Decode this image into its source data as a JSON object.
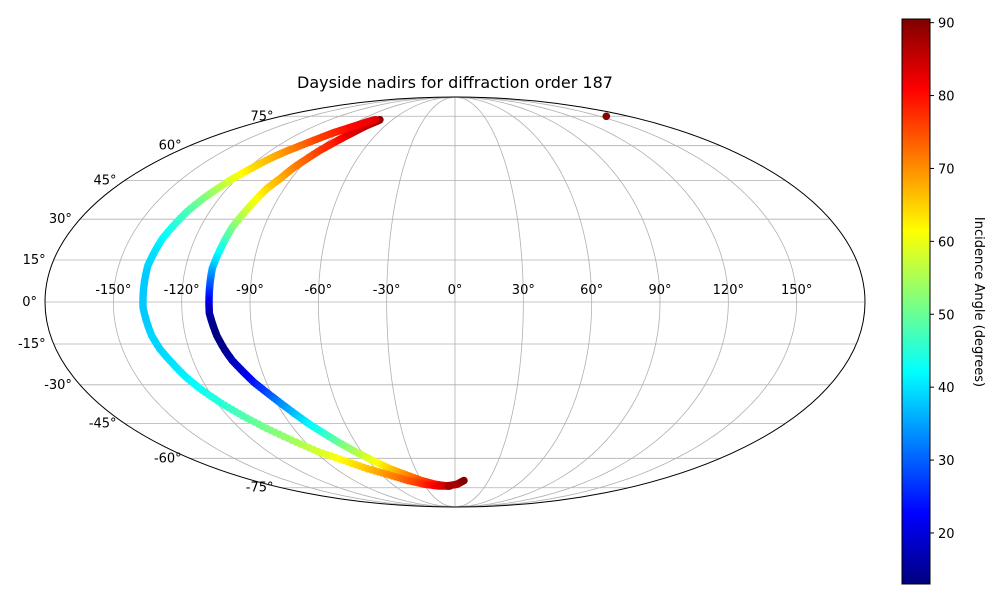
{
  "chart_data": {
    "type": "scatter",
    "projection": "mollweide",
    "title": "Dayside nadirs for diffraction order 187",
    "grid": true,
    "lon_ticks": [
      -150,
      -120,
      -90,
      -60,
      -30,
      0,
      30,
      60,
      90,
      120,
      150
    ],
    "lon_tick_labels": [
      "-150°",
      "-120°",
      "-90°",
      "-60°",
      "-30°",
      "0°",
      "30°",
      "60°",
      "90°",
      "120°",
      "150°"
    ],
    "lat_ticks": [
      75,
      60,
      45,
      30,
      15,
      0,
      -15,
      -30,
      -45,
      -60,
      -75
    ],
    "lat_tick_labels": [
      "75°",
      "60°",
      "45°",
      "30°",
      "15°",
      "0°",
      "-15°",
      "-30°",
      "-45°",
      "-60°",
      "-75°"
    ],
    "colorbar": {
      "label": "Incidence Angle (degrees)",
      "colormap": "jet",
      "range": [
        13,
        90.5
      ],
      "ticks": [
        20,
        30,
        40,
        50,
        60,
        70,
        80,
        90
      ],
      "tick_labels": [
        "20",
        "30",
        "40",
        "50",
        "60",
        "70",
        "80",
        "90"
      ]
    },
    "series": [
      {
        "points": [
          [
            -72,
            73,
            90
          ],
          [
            -73,
            72,
            88
          ],
          [
            -76,
            70,
            86
          ],
          [
            -79,
            67,
            84
          ],
          [
            -82,
            64,
            82
          ],
          [
            -85,
            61,
            79
          ],
          [
            -88,
            58,
            77
          ],
          [
            -91,
            54,
            74
          ],
          [
            -94,
            50,
            71
          ],
          [
            -96,
            46,
            68
          ],
          [
            -99,
            42,
            65
          ],
          [
            -101,
            37,
            61
          ],
          [
            -103,
            32,
            57
          ],
          [
            -105,
            27,
            52
          ],
          [
            -106,
            22,
            47
          ],
          [
            -107,
            17,
            42
          ],
          [
            -108,
            12,
            37
          ],
          [
            -108,
            8,
            32
          ],
          [
            -108,
            4,
            27
          ],
          [
            -108,
            0,
            22
          ],
          [
            -108,
            -4,
            17
          ],
          [
            -107,
            -8,
            14
          ],
          [
            -106,
            -12,
            13
          ],
          [
            -104,
            -17,
            14
          ],
          [
            -102,
            -21,
            17
          ],
          [
            -99,
            -25,
            20
          ],
          [
            -96,
            -29,
            24
          ],
          [
            -92,
            -33,
            28
          ],
          [
            -88,
            -37,
            33
          ],
          [
            -84,
            -41,
            37
          ],
          [
            -80,
            -45,
            41
          ],
          [
            -75,
            -49,
            45
          ],
          [
            -70,
            -53,
            50
          ],
          [
            -64,
            -57,
            55
          ],
          [
            -57,
            -61,
            60
          ],
          [
            -49,
            -65,
            65
          ],
          [
            -40,
            -68,
            70
          ],
          [
            -30,
            -71,
            75
          ],
          [
            -19,
            -73,
            79
          ],
          [
            -8,
            -74,
            83
          ],
          [
            2,
            -73,
            87
          ],
          [
            8,
            -71,
            90
          ]
        ]
      },
      {
        "points": [
          [
            -76,
            73,
            84
          ],
          [
            -80,
            72,
            82
          ],
          [
            -85,
            70,
            81
          ],
          [
            -90,
            68,
            80
          ],
          [
            -95,
            66,
            78
          ],
          [
            -100,
            63,
            76
          ],
          [
            -105,
            60,
            73
          ],
          [
            -110,
            57,
            70
          ],
          [
            -114,
            54,
            67
          ],
          [
            -118,
            50,
            64
          ],
          [
            -122,
            46,
            60
          ],
          [
            -125,
            42,
            56
          ],
          [
            -128,
            38,
            52
          ],
          [
            -131,
            33,
            48
          ],
          [
            -133,
            28,
            45
          ],
          [
            -135,
            23,
            42
          ],
          [
            -136,
            18,
            40
          ],
          [
            -137,
            13,
            39
          ],
          [
            -137,
            8,
            38
          ],
          [
            -137,
            3,
            38
          ],
          [
            -137,
            -2,
            38
          ],
          [
            -136,
            -7,
            38
          ],
          [
            -135,
            -12,
            39
          ],
          [
            -133,
            -17,
            39
          ],
          [
            -130,
            -22,
            40
          ],
          [
            -127,
            -27,
            41
          ],
          [
            -123,
            -32,
            43
          ],
          [
            -118,
            -37,
            45
          ],
          [
            -112,
            -42,
            48
          ],
          [
            -105,
            -47,
            51
          ],
          [
            -97,
            -52,
            54
          ],
          [
            -88,
            -57,
            58
          ],
          [
            -77,
            -61,
            62
          ],
          [
            -66,
            -65,
            66
          ],
          [
            -54,
            -68,
            70
          ],
          [
            -42,
            -71,
            74
          ],
          [
            -29,
            -73,
            78
          ],
          [
            -17,
            -74,
            82
          ],
          [
            -8,
            -74,
            85
          ],
          [
            -5,
            -74,
            88
          ]
        ]
      },
      {
        "points": [
          [
            157,
            75,
            90
          ]
        ]
      }
    ]
  }
}
